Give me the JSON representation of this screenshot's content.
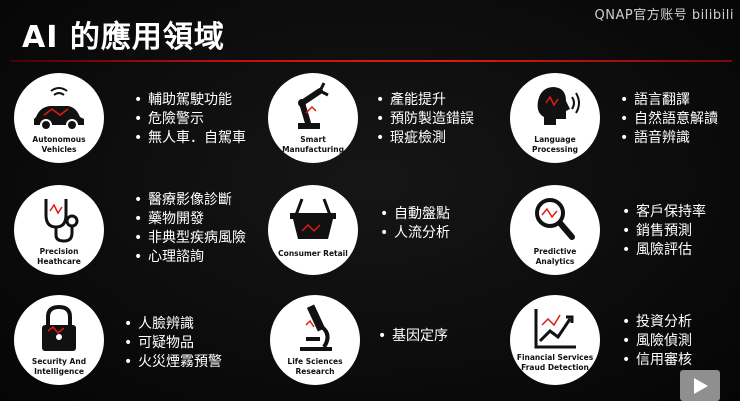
{
  "title": "AI 的應用領域",
  "watermark": "QNAP官方账号 bilibili",
  "cards": [
    {
      "label_lines": [
        "Autonomous",
        "Vehicles"
      ],
      "icon": "car-icon",
      "bullets": [
        "輔助駕駛功能",
        "危險警示",
        "無人車．自駕車"
      ]
    },
    {
      "label_lines": [
        "Smart",
        "Manufacturing"
      ],
      "icon": "robot-arm-icon",
      "bullets": [
        "產能提升",
        "預防製造錯誤",
        "瑕疵檢測"
      ]
    },
    {
      "label_lines": [
        "Language",
        "Processing"
      ],
      "icon": "speaking-head-icon",
      "bullets": [
        "語言翻譯",
        "自然語意解讀",
        "語音辨識"
      ]
    },
    {
      "label_lines": [
        "Precision",
        "Heathcare"
      ],
      "icon": "stethoscope-icon",
      "bullets": [
        "醫療影像診斷",
        "藥物開發",
        "非典型疾病風險",
        "心理諮詢"
      ]
    },
    {
      "label_lines": [
        "Consumer Retail"
      ],
      "icon": "shopping-basket-icon",
      "bullets": [
        "自動盤點",
        "人流分析"
      ]
    },
    {
      "label_lines": [
        "Predictive",
        "Analytics"
      ],
      "icon": "magnifier-icon",
      "bullets": [
        "客戶保持率",
        "銷售預測",
        "風險評估"
      ]
    },
    {
      "label_lines": [
        "Security And",
        "Intelligence"
      ],
      "icon": "padlock-icon",
      "bullets": [
        "人臉辨識",
        "可疑物品",
        "火災煙霧預警"
      ]
    },
    {
      "label_lines": [
        "Life Sciences",
        "Research"
      ],
      "icon": "microscope-icon",
      "bullets": [
        "基因定序"
      ]
    },
    {
      "label_lines": [
        "Financial Services",
        "Fraud Detection"
      ],
      "icon": "growth-chart-icon",
      "bullets": [
        "投資分析",
        "風險偵測",
        "信用審核"
      ]
    }
  ],
  "colors": {
    "accent": "#e11b0f",
    "background": "#0b0b0b",
    "text": "#ffffff"
  }
}
